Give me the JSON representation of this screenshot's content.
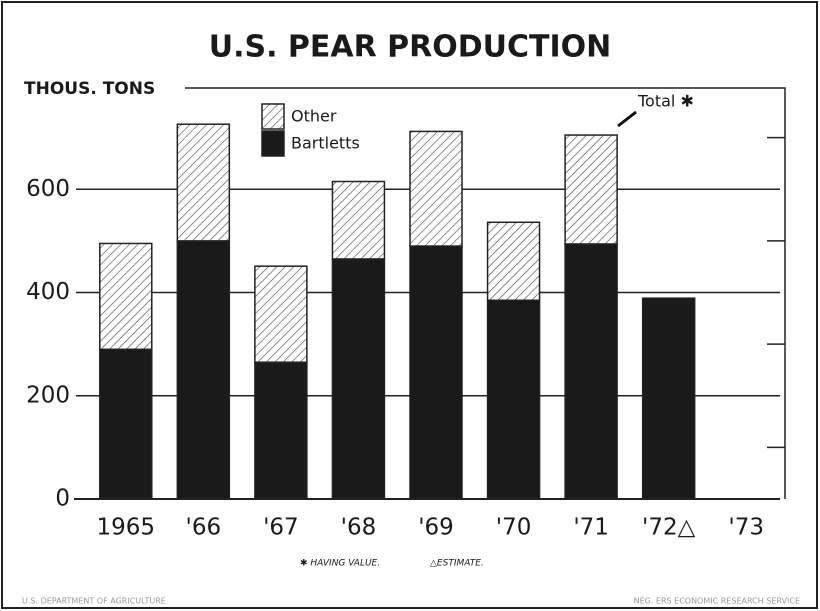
{
  "chart_data": {
    "type": "stacked_bar",
    "title": "U.S. PEAR PRODUCTION",
    "y_label": "THOUS. TONS",
    "categories": [
      "1965",
      "'66",
      "'67",
      "'68",
      "'69",
      "'70",
      "'71",
      "'72△",
      "'73"
    ],
    "series": [
      {
        "name": "Bartletts",
        "color": "#1a1a1a",
        "values": [
          290,
          500,
          265,
          465,
          490,
          385,
          494,
          389,
          null
        ]
      },
      {
        "name": "Other",
        "color": "#ffffff",
        "pattern": "hatch",
        "values": [
          205,
          226,
          186,
          150,
          222,
          151,
          211,
          null,
          null
        ]
      }
    ],
    "ylim": [
      0,
      800
    ],
    "yticks": [
      0,
      200,
      400,
      600
    ],
    "yminorticks": [
      100,
      300,
      500,
      700
    ],
    "grid": true,
    "annotation": "Total ✱",
    "footnotes": [
      "✱ HAVING VALUE.",
      "△ESTIMATE."
    ],
    "source_left": "U.S. DEPARTMENT OF AGRICULTURE",
    "source_right": "NEG. ERS ECONOMIC RESEARCH SERVICE"
  }
}
